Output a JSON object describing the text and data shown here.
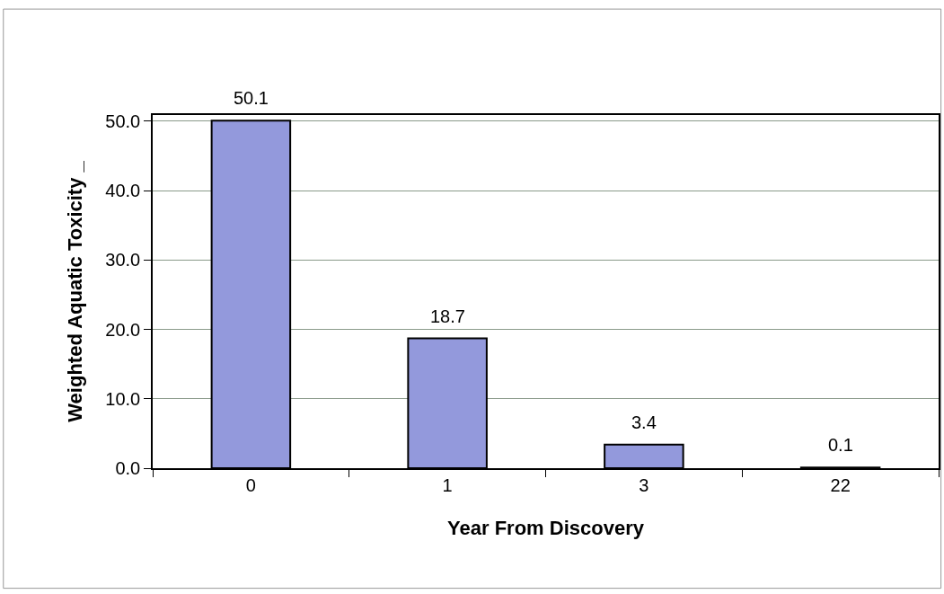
{
  "chart_data": {
    "type": "bar",
    "xlabel": "Year From Discovery",
    "ylabel": "Weighted Aquatic Toxicity _",
    "categories": [
      "0",
      "1",
      "3",
      "22"
    ],
    "values": [
      50.1,
      18.7,
      3.4,
      0.1
    ],
    "color": "#9399dc",
    "data_labels": true,
    "ylim": [
      0,
      50.9
    ],
    "yticks": [
      {
        "value": 0,
        "label": "0.0"
      },
      {
        "value": 10,
        "label": "10.0"
      },
      {
        "value": 20,
        "label": "20.0"
      },
      {
        "value": 30,
        "label": "30.0"
      },
      {
        "value": 40,
        "label": "40.0"
      },
      {
        "value": 50,
        "label": "50.0"
      }
    ],
    "grid": "y",
    "legend": false
  }
}
